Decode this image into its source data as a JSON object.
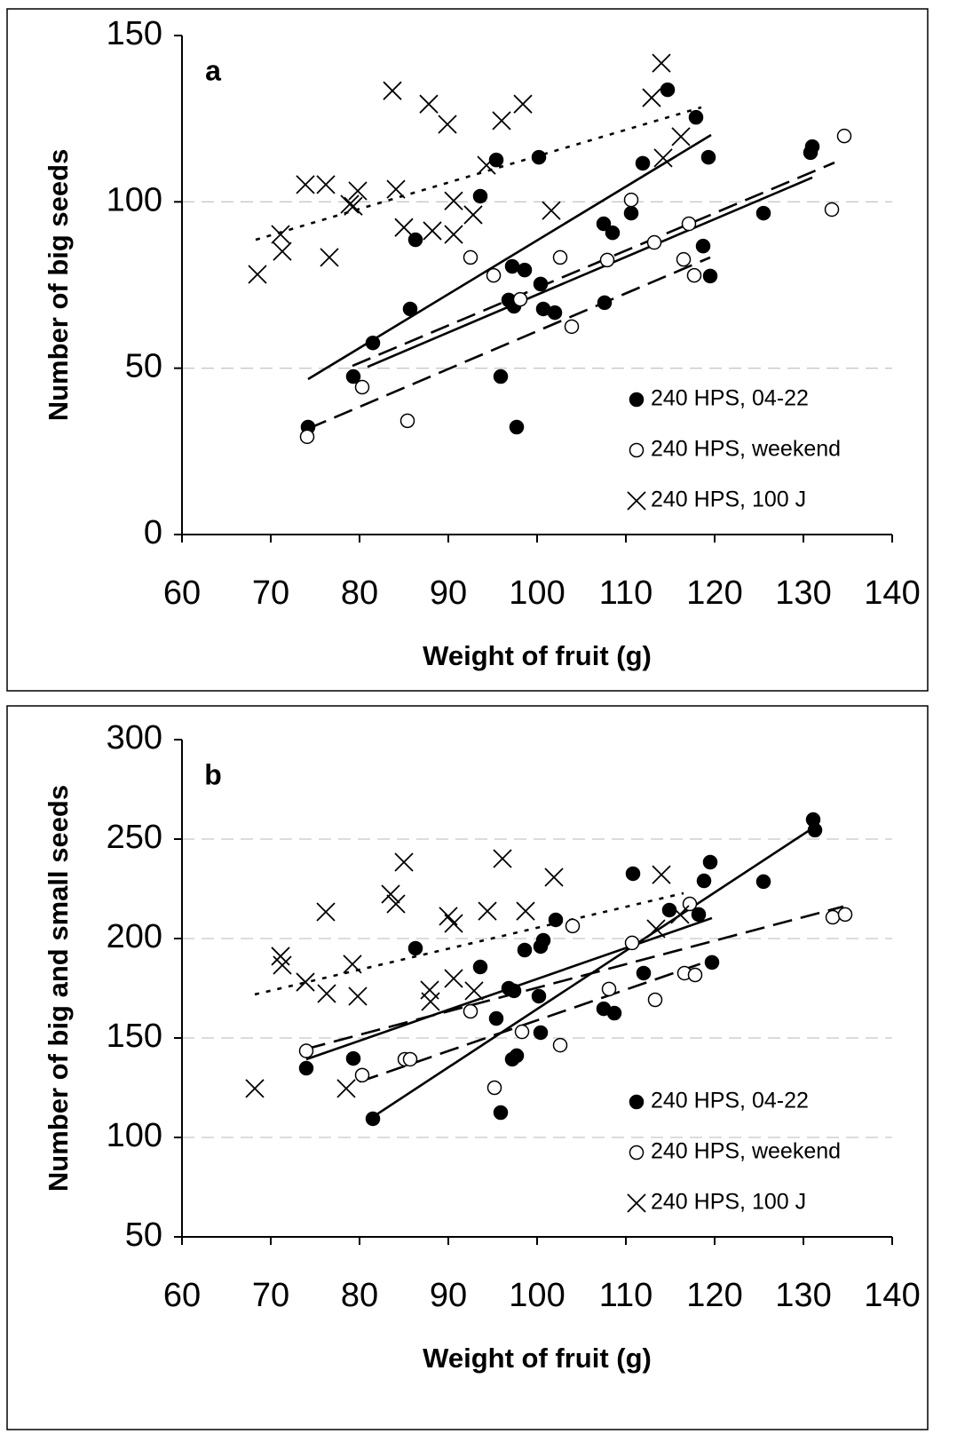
{
  "chart_data": [
    {
      "type": "scatter",
      "title": "a",
      "x_label": "Weight of fruit (g)",
      "y_label": "Number of big seeds",
      "xlim": [
        60,
        140
      ],
      "xticks": [
        60,
        70,
        80,
        90,
        100,
        110,
        120,
        130,
        140
      ],
      "ylim": [
        0,
        150
      ],
      "yticks": [
        0,
        50,
        100,
        150
      ],
      "grid": true,
      "legend": "lower right",
      "series": [
        {
          "name": "240 HPS, 04-22",
          "marker": "filled",
          "color": "#000000",
          "x": [
            74.2,
            79.3,
            81.5,
            85.7,
            86.3,
            93.6,
            95.4,
            100.2,
            95.9,
            97.2,
            98.6,
            96.8,
            97.4,
            100.4,
            100.7,
            102,
            97.7,
            107.5,
            107.6,
            108.5,
            110.6,
            111.9,
            114.7,
            117.9,
            118.7,
            119.3,
            119.5,
            125.5,
            130.8,
            131
          ],
          "values": [
            32.3,
            47.5,
            57.6,
            67.8,
            88.6,
            101.7,
            112.6,
            113.4,
            47.5,
            80.6,
            79.5,
            70.5,
            68.6,
            75.3,
            67.8,
            66.7,
            32.3,
            93.4,
            69.7,
            90.7,
            96.6,
            111.6,
            133.7,
            125.4,
            86.7,
            113.4,
            77.7,
            96.6,
            114.8,
            116.6
          ]
        },
        {
          "name": "240 HPS, weekend",
          "marker": "open",
          "color": "#000000",
          "x": [
            74.1,
            80.3,
            85.4,
            92.5,
            95.1,
            98.1,
            102.6,
            103.9,
            107.9,
            110.6,
            113.2,
            116.5,
            117.1,
            117.7,
            133.2,
            134.6
          ],
          "values": [
            29.4,
            44.3,
            34.2,
            83.3,
            77.9,
            70.7,
            83.3,
            62.5,
            82.5,
            100.6,
            87.8,
            82.7,
            93.4,
            77.9,
            97.7,
            119.8
          ]
        },
        {
          "name": "240 HPS, 100 J",
          "marker": "cross",
          "color": "#000000",
          "x": [
            68.5,
            71.1,
            71.3,
            73.9,
            76.2,
            76.6,
            78.9,
            79.3,
            79.8,
            83.7,
            84.1,
            85,
            87.8,
            88.2,
            89.9,
            90.6,
            90.6,
            92.8,
            94.3,
            96,
            98.4,
            101.6,
            112.9,
            114,
            114.2,
            116.2
          ],
          "values": [
            78.2,
            90.2,
            85.1,
            105.2,
            105.2,
            83.3,
            99.3,
            98.7,
            103.3,
            133.4,
            103.8,
            92.3,
            129.4,
            91.3,
            123.3,
            90.2,
            100.3,
            96.1,
            111,
            124.4,
            129.4,
            97.4,
            131.3,
            141.7,
            113.2,
            119.6
          ]
        }
      ],
      "trendlines": [
        {
          "dash": "solid",
          "x": [
            74.2,
            119.6
          ],
          "y": [
            46.7,
            120.1
          ]
        },
        {
          "dash": "solid",
          "x": [
            80.9,
            131
          ],
          "y": [
            50.4,
            107.3
          ]
        },
        {
          "dash": "dashed",
          "x": [
            74.2,
            119.5
          ],
          "y": [
            31.8,
            83.3
          ]
        },
        {
          "dash": "dashed",
          "x": [
            79.2,
            133.5
          ],
          "y": [
            50.7,
            111.8
          ]
        },
        {
          "dash": "dotted",
          "x": [
            68.3,
            118.5
          ],
          "y": [
            88.6,
            128.4
          ]
        }
      ]
    },
    {
      "type": "scatter",
      "title": "b",
      "x_label": "Weight of fruit (g)",
      "y_label": "Number of big and small seeds",
      "xlim": [
        60,
        140
      ],
      "xticks": [
        60,
        70,
        80,
        90,
        100,
        110,
        120,
        130,
        140
      ],
      "ylim": [
        50,
        300
      ],
      "yticks": [
        50,
        100,
        150,
        200,
        250,
        300
      ],
      "grid": true,
      "legend": "lower right",
      "series": [
        {
          "name": "240 HPS, 04-22",
          "marker": "filled",
          "color": "#000000",
          "x": [
            74,
            79.3,
            81.5,
            86.3,
            93.6,
            95.4,
            95.9,
            97.2,
            97.7,
            98.6,
            96.8,
            97.4,
            100.2,
            100.4,
            100.7,
            100.4,
            102.1,
            107.5,
            108.7,
            110.8,
            112,
            114.9,
            118.2,
            118.8,
            119.5,
            119.7,
            125.5,
            131.1,
            131.3
          ],
          "values": [
            134.8,
            139.7,
            109.4,
            195.1,
            185.7,
            159.8,
            112.5,
            139.3,
            141.1,
            194.2,
            175,
            173.7,
            171,
            152.7,
            199.1,
            196,
            209.4,
            164.7,
            162.5,
            232.6,
            182.6,
            214.3,
            212.1,
            229,
            238.4,
            188,
            228.6,
            259.8,
            254.5
          ]
        },
        {
          "name": "240 HPS, weekend",
          "marker": "open",
          "color": "#000000",
          "x": [
            74,
            80.3,
            85.1,
            85.7,
            92.5,
            95.2,
            98.3,
            102.6,
            104,
            108.1,
            110.7,
            113.3,
            116.6,
            117.2,
            117.8,
            133.3,
            134.7
          ],
          "values": [
            143.5,
            131.3,
            139.3,
            139.3,
            163.4,
            125,
            153.1,
            146.4,
            206.3,
            174.6,
            197.8,
            169.2,
            182.6,
            217.4,
            181.7,
            210.7,
            212.1
          ]
        },
        {
          "name": "240 HPS, 100 J",
          "marker": "cross",
          "color": "#000000",
          "x": [
            68.2,
            71.1,
            71.3,
            73.9,
            76.2,
            76.3,
            79.2,
            79.8,
            78.5,
            83.5,
            84.1,
            85,
            87.9,
            88,
            90,
            90.6,
            90.6,
            92.9,
            94.4,
            96.1,
            98.7,
            101.9,
            114,
            113.4,
            116.1
          ],
          "values": [
            124.6,
            191.1,
            186.6,
            178.1,
            213.4,
            172.3,
            187.1,
            171,
            124.6,
            222.3,
            217.4,
            238.4,
            174.1,
            168.3,
            211.2,
            207.6,
            179.9,
            173.7,
            213.8,
            240.2,
            213.8,
            230.8,
            232.1,
            204.9,
            212.1
          ]
        }
      ],
      "trendlines": [
        {
          "dash": "solid",
          "x": [
            81.5,
            131
          ],
          "y": [
            110.3,
            255.4
          ]
        },
        {
          "dash": "solid",
          "x": [
            74,
            119.7
          ],
          "y": [
            139.3,
            210.3
          ]
        },
        {
          "dash": "dashed",
          "x": [
            74,
            134.5
          ],
          "y": [
            144.5,
            216.1
          ]
        },
        {
          "dash": "dashed",
          "x": [
            80,
            119.7
          ],
          "y": [
            128,
            189.3
          ]
        },
        {
          "dash": "dotted",
          "x": [
            68.2,
            116.5
          ],
          "y": [
            171.9,
            222.8
          ]
        }
      ]
    }
  ]
}
